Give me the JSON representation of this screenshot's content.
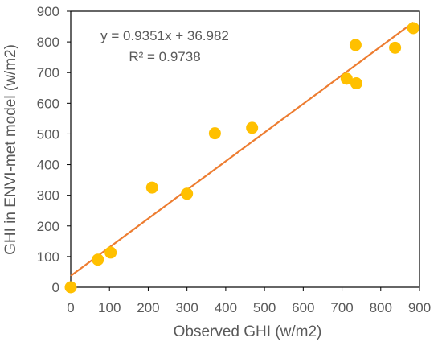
{
  "chart_data": {
    "type": "scatter",
    "xlabel": "Observed GHI (w/m2)",
    "ylabel": "GHI in ENVI-met model (w/m2)",
    "xlim": [
      0,
      900
    ],
    "ylim": [
      0,
      900
    ],
    "x_ticks": [
      "0",
      "100",
      "200",
      "300",
      "400",
      "500",
      "600",
      "700",
      "800",
      "900"
    ],
    "y_ticks": [
      "0",
      "100",
      "200",
      "300",
      "400",
      "500",
      "600",
      "700",
      "800",
      "900"
    ],
    "grid": false,
    "legend": "none",
    "series": [
      {
        "color": "#FFC000",
        "points": [
          {
            "x": 0,
            "y": 0
          },
          {
            "x": 70,
            "y": 90
          },
          {
            "x": 103,
            "y": 113
          },
          {
            "x": 210,
            "y": 325
          },
          {
            "x": 300,
            "y": 305
          },
          {
            "x": 372,
            "y": 502
          },
          {
            "x": 468,
            "y": 520
          },
          {
            "x": 712,
            "y": 680
          },
          {
            "x": 735,
            "y": 790
          },
          {
            "x": 737,
            "y": 665
          },
          {
            "x": 837,
            "y": 781
          },
          {
            "x": 884,
            "y": 845
          }
        ]
      }
    ],
    "trendline": {
      "type": "linear",
      "slope": 0.9351,
      "intercept": 36.982,
      "x_range": [
        0,
        884
      ],
      "color": "#ED7D31",
      "equation": "y = 0.9351x + 36.982",
      "r_squared": "R² = 0.9738"
    }
  }
}
